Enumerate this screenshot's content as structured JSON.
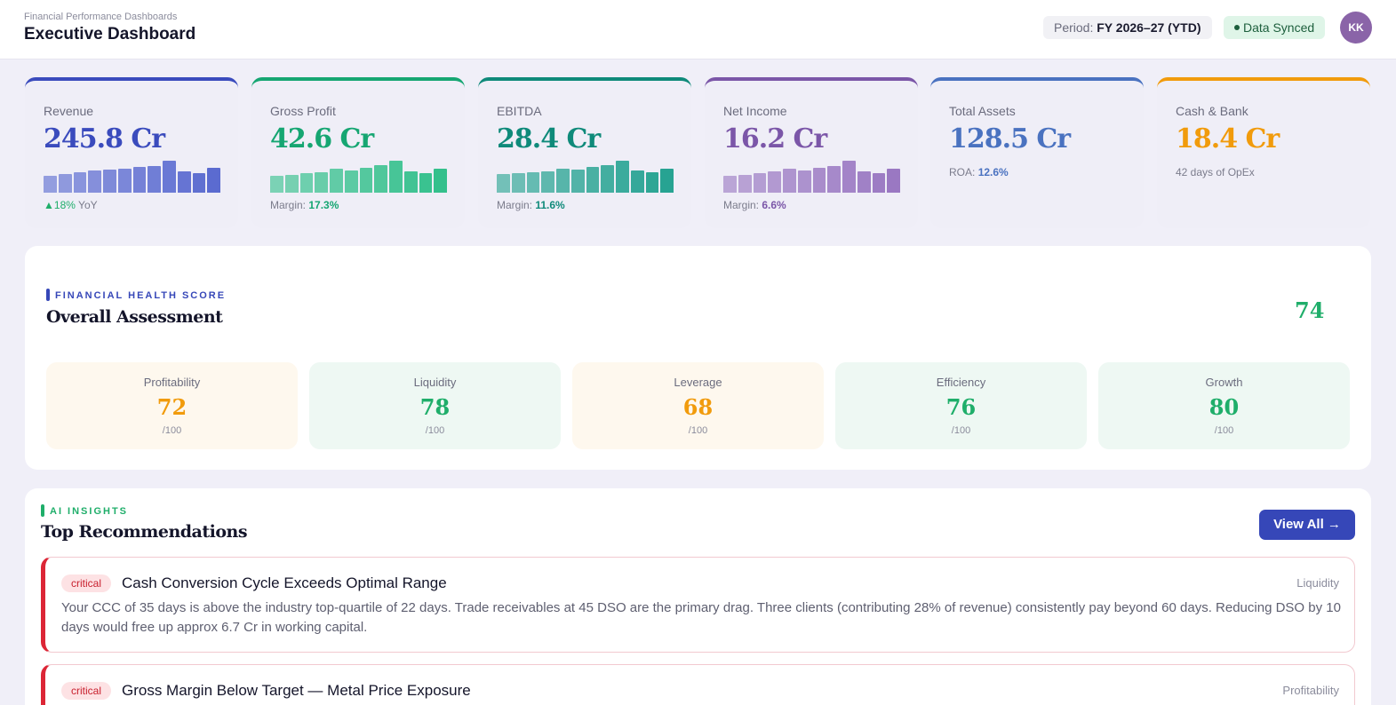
{
  "header": {
    "breadcrumb": "Financial Performance Dashboards",
    "title": "Executive Dashboard",
    "period_label": "Period:",
    "period_value": "FY 2026–27 (YTD)",
    "sync_status": "Data Synced",
    "avatar_initials": "KK"
  },
  "kpis": [
    {
      "label": "Revenue",
      "value": "245.8 Cr",
      "color": "#3a4bbd",
      "bar_color": "#5b6bd0",
      "sub_prefix": "▲",
      "sub_value": "18%",
      "sub_suffix": "YoY",
      "bars": [
        0.52,
        0.58,
        0.64,
        0.7,
        0.72,
        0.76,
        0.8,
        0.84,
        1.0,
        0.68,
        0.62,
        0.78
      ]
    },
    {
      "label": "Gross Profit",
      "value": "42.6 Cr",
      "color": "#16a672",
      "bar_color": "#34c08c",
      "sub_prefix": "Margin:",
      "sub_value": "17.3%",
      "sub_suffix": "",
      "bars": [
        0.52,
        0.56,
        0.6,
        0.64,
        0.76,
        0.7,
        0.78,
        0.86,
        1.0,
        0.66,
        0.6,
        0.76
      ]
    },
    {
      "label": "EBITDA",
      "value": "28.4 Cr",
      "color": "#0f8a7a",
      "bar_color": "#27a392",
      "sub_prefix": "Margin:",
      "sub_value": "11.6%",
      "sub_suffix": "",
      "bars": [
        0.58,
        0.6,
        0.64,
        0.68,
        0.74,
        0.72,
        0.8,
        0.86,
        1.0,
        0.7,
        0.64,
        0.74
      ]
    },
    {
      "label": "Net Income",
      "value": "16.2 Cr",
      "color": "#7b56a8",
      "bar_color": "#9a78c2",
      "sub_prefix": "Margin:",
      "sub_value": "6.6%",
      "sub_suffix": "",
      "bars": [
        0.52,
        0.56,
        0.62,
        0.68,
        0.74,
        0.7,
        0.78,
        0.84,
        1.0,
        0.66,
        0.62,
        0.74
      ]
    },
    {
      "label": "Total Assets",
      "value": "128.5 Cr",
      "color": "#4a72c0",
      "bar_color": "",
      "sub_prefix": "ROA:",
      "sub_value": "12.6%",
      "sub_suffix": "",
      "bars": []
    },
    {
      "label": "Cash & Bank",
      "value": "18.4 Cr",
      "color": "#f19b0c",
      "bar_color": "",
      "sub_prefix": "42 days of OpEx",
      "sub_value": "",
      "sub_suffix": "",
      "bars": []
    }
  ],
  "health": {
    "tag": "FINANCIAL HEALTH SCORE",
    "title": "Overall Assessment",
    "score": "74",
    "tag_color": "#3647b8",
    "scores": [
      {
        "label": "Profitability",
        "value": "72",
        "max": "/100",
        "color": "#f19b0c",
        "bg": "#fef8ee"
      },
      {
        "label": "Liquidity",
        "value": "78",
        "max": "/100",
        "color": "#1fae6a",
        "bg": "#eef8f3"
      },
      {
        "label": "Leverage",
        "value": "68",
        "max": "/100",
        "color": "#f19b0c",
        "bg": "#fef8ee"
      },
      {
        "label": "Efficiency",
        "value": "76",
        "max": "/100",
        "color": "#1fae6a",
        "bg": "#eef8f3"
      },
      {
        "label": "Growth",
        "value": "80",
        "max": "/100",
        "color": "#1fae6a",
        "bg": "#eef8f3"
      }
    ]
  },
  "insights": {
    "tag": "AI INSIGHTS",
    "title": "Top Recommendations",
    "tag_color": "#1fae6a",
    "view_all": "View All →",
    "items": [
      {
        "severity": "critical",
        "title": "Cash Conversion Cycle Exceeds Optimal Range",
        "category": "Liquidity",
        "description": "Your CCC of 35 days is above the industry top-quartile of 22 days. Trade receivables at 45 DSO are the primary drag. Three clients (contributing 28% of revenue) consistently pay beyond 60 days. Reducing DSO by 10 days would free up approx 6.7 Cr in working capital."
      },
      {
        "severity": "critical",
        "title": "Gross Margin Below Target — Metal Price Exposure",
        "category": "Profitability",
        "description": ""
      }
    ]
  }
}
